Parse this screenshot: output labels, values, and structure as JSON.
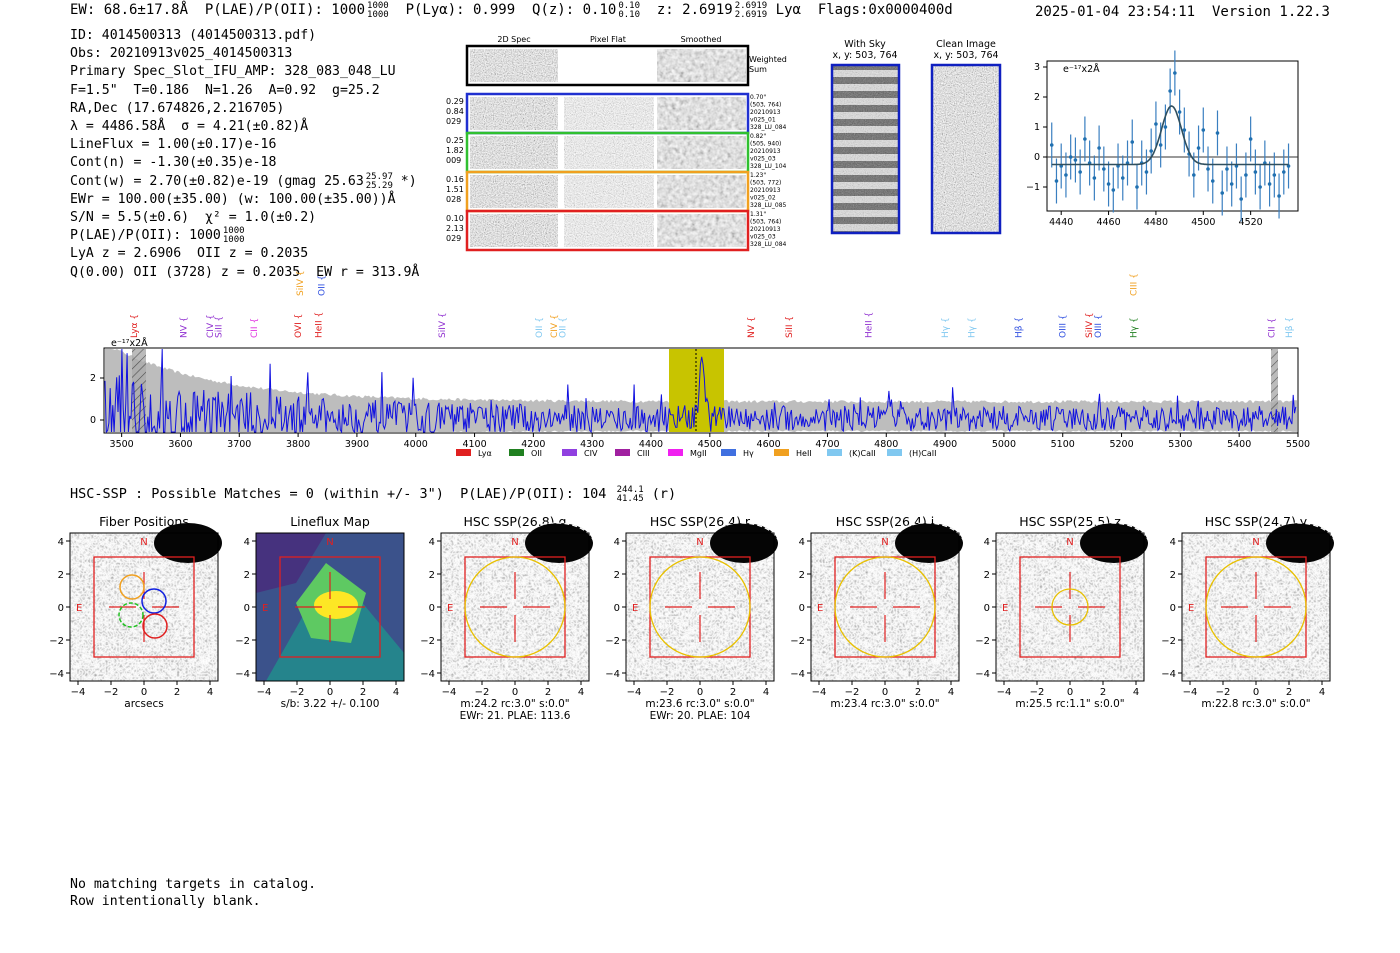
{
  "header": {
    "ew": "EW: 68.6±17.8Å",
    "plae_label": "P(LAE)/P(OII): 1000",
    "plae_hi": "1000",
    "plae_lo": "1000",
    "plya": "P(Lyα): 0.999",
    "qz_label": "Q(z): 0.10",
    "qz_hi": "0.10",
    "qz_lo": "0.10",
    "z_label": "z: 2.6919",
    "z_hi": "2.6919",
    "z_lo": "2.6919",
    "line": "Lyα",
    "flags": "Flags:0x0000400d",
    "datetime": "2025-01-04 23:54:11",
    "version": "Version 1.22.3"
  },
  "info": {
    "id": "ID: 4014500313 (4014500313.pdf)",
    "obs": "Obs: 20210913v025_4014500313",
    "primary": "Primary Spec_Slot_IFU_AMP: 328_083_048_LU",
    "fparams": "F=1.5\"  T=0.186  N=1.26  A=0.92  g=25.2",
    "radec": "RA,Dec (17.674826,2.216705)",
    "lambda": "λ = 4486.58Å  σ = 4.21(±0.82)Å",
    "lineflux": "LineFlux = 1.00(±0.17)e-16",
    "contn": "Cont(n) = -1.30(±0.35)e-18",
    "contw": "Cont(w) = 2.70(±0.82)e-19 (gmag 25.63",
    "gmag_hi": "25.97",
    "gmag_lo": "25.29",
    "contw_end": " *)",
    "ewr": "EWr = 100.00(±35.00) (w: 100.00(±35.00))Å",
    "sn": "S/N = 5.5(±0.6)  χ² = 1.0(±0.2)",
    "plae": "P(LAE)/P(OII): 1000",
    "plae_hi": "1000",
    "plae_lo": "1000",
    "lya_z": "LyA z = 2.6906  OII z = 0.2035",
    "q_oii": "Q(0.00) OII (3728) z = 0.2035  EW r = 313.9Å"
  },
  "cutouts": {
    "col_headers": [
      "2D Spec",
      "Pixel Flat",
      "Smoothed"
    ],
    "weighted_sum": [
      "Weighted",
      "Sum"
    ],
    "rows": [
      {
        "left": [
          "0.29",
          "0.84",
          "029"
        ],
        "right": [
          "0.70\"",
          "(503, 764)",
          "20210913",
          "v025_01",
          "328_LU_084"
        ],
        "color": "#2030d0"
      },
      {
        "left": [
          "0.25",
          "1.82",
          "009"
        ],
        "right": [
          "0.82\"",
          "(505, 940)",
          "20210913",
          "v025_03",
          "328_LU_104"
        ],
        "color": "#30c030"
      },
      {
        "left": [
          "0.16",
          "1.51",
          "028"
        ],
        "right": [
          "1.23\"",
          "(503, 772)",
          "20210913",
          "v025_02",
          "328_LU_085"
        ],
        "color": "#f0a020"
      },
      {
        "left": [
          "0.10",
          "2.13",
          "029"
        ],
        "right": [
          "1.31\"",
          "(503, 764)",
          "20210913",
          "v025_03",
          "328_LU_084"
        ],
        "color": "#e02020"
      }
    ]
  },
  "sky": {
    "with_sky": [
      "With Sky",
      "x, y: 503, 764"
    ],
    "clean": [
      "Clean Image",
      "x, y: 503, 764"
    ]
  },
  "zoom_fit": {
    "unit": "e⁻¹⁷x2Å",
    "xticks": [
      "4440",
      "4460",
      "4480",
      "4500",
      "4520"
    ],
    "yticks": [
      "3",
      "2",
      "1",
      "0",
      "−1"
    ],
    "xlim": [
      4434,
      4540
    ],
    "ylim": [
      -1.8,
      3.2
    ],
    "points_x": [
      4436,
      4438,
      4440,
      4442,
      4444,
      4446,
      4448,
      4450,
      4452,
      4454,
      4456,
      4458,
      4460,
      4462,
      4464,
      4466,
      4468,
      4470,
      4472,
      4474,
      4476,
      4478,
      4480,
      4482,
      4484,
      4486,
      4488,
      4490,
      4492,
      4494,
      4496,
      4498,
      4500,
      4502,
      4504,
      4506,
      4508,
      4510,
      4512,
      4514,
      4516,
      4518,
      4520,
      4522,
      4524,
      4526,
      4528,
      4530,
      4532,
      4534,
      4536
    ],
    "points_y": [
      0.4,
      -0.8,
      -0.3,
      -0.6,
      0.0,
      -0.1,
      -0.5,
      0.6,
      -0.2,
      -0.7,
      0.3,
      -0.4,
      -0.9,
      -1.1,
      -0.3,
      -0.7,
      -0.2,
      0.5,
      -1.0,
      -0.2,
      -0.5,
      0.2,
      1.1,
      0.4,
      1.0,
      2.2,
      2.8,
      1.5,
      0.9,
      0.1,
      -0.6,
      0.3,
      0.9,
      -0.4,
      -0.8,
      0.8,
      -1.2,
      -0.4,
      -0.9,
      -0.3,
      -1.4,
      -0.6,
      0.6,
      -0.5,
      -1.0,
      -0.2,
      -0.9,
      -0.6,
      -1.3,
      -0.5,
      -0.3
    ]
  },
  "spectrum": {
    "unit": "e⁻¹⁷x2Å",
    "xticks": [
      "3500",
      "3600",
      "3700",
      "3800",
      "3900",
      "4000",
      "4100",
      "4200",
      "4300",
      "4400",
      "4500",
      "4600",
      "4700",
      "4800",
      "4900",
      "5000",
      "5100",
      "5200",
      "5300",
      "5400",
      "5500"
    ],
    "yticks": [
      "2",
      "0"
    ],
    "line_labels": [
      {
        "name": "Lyα",
        "wave": 3526,
        "color": "#e02020",
        "row": 2
      },
      {
        "name": "NV",
        "wave": 3610,
        "color": "#9030d0",
        "row": 2
      },
      {
        "name": "CIV",
        "wave": 3655,
        "color": "#9030d0",
        "row": 2
      },
      {
        "name": "SiII",
        "wave": 3670,
        "color": "#9030d0",
        "row": 2
      },
      {
        "name": "CII",
        "wave": 3730,
        "color": "#e030e0",
        "row": 2
      },
      {
        "name": "OVI",
        "wave": 3805,
        "color": "#e02020",
        "row": 2
      },
      {
        "name": "SiIV",
        "wave": 3808,
        "color": "#f0a020",
        "row": 1
      },
      {
        "name": "OII",
        "wave": 3845,
        "color": "#3050e0",
        "row": 1
      },
      {
        "name": "HeII",
        "wave": 3840,
        "color": "#e02020",
        "row": 2
      },
      {
        "name": "SiIV",
        "wave": 4050,
        "color": "#9030d0",
        "row": 2
      },
      {
        "name": "OII",
        "wave": 4215,
        "color": "#80c8f0",
        "row": 2
      },
      {
        "name": "CIV",
        "wave": 4240,
        "color": "#f0a020",
        "row": 2
      },
      {
        "name": "OII",
        "wave": 4255,
        "color": "#80c8f0",
        "row": 2
      },
      {
        "name": "NV",
        "wave": 4575,
        "color": "#e02020",
        "row": 2
      },
      {
        "name": "SiII",
        "wave": 4640,
        "color": "#e02020",
        "row": 2
      },
      {
        "name": "HeII",
        "wave": 4775,
        "color": "#9030d0",
        "row": 2
      },
      {
        "name": "Hγ",
        "wave": 4905,
        "color": "#80c8f0",
        "row": 2
      },
      {
        "name": "Hγ",
        "wave": 4950,
        "color": "#80c8f0",
        "row": 2
      },
      {
        "name": "Hβ",
        "wave": 5030,
        "color": "#3050e0",
        "row": 2
      },
      {
        "name": "OIII",
        "wave": 5105,
        "color": "#3050e0",
        "row": 2
      },
      {
        "name": "SiIV",
        "wave": 5150,
        "color": "#e02020",
        "row": 2
      },
      {
        "name": "OIII",
        "wave": 5165,
        "color": "#3050e0",
        "row": 2
      },
      {
        "name": "CIII",
        "wave": 5225,
        "color": "#f0a020",
        "row": 1
      },
      {
        "name": "Hγ",
        "wave": 5225,
        "color": "#208020",
        "row": 2
      },
      {
        "name": "CII",
        "wave": 5460,
        "color": "#9030d0",
        "row": 2
      },
      {
        "name": "Hβ",
        "wave": 5490,
        "color": "#80c8f0",
        "row": 2
      }
    ],
    "legend": [
      {
        "name": "Lyα",
        "color": "#e02020"
      },
      {
        "name": "OII",
        "color": "#208020"
      },
      {
        "name": "CIV",
        "color": "#9040e0"
      },
      {
        "name": "CIII",
        "color": "#a020a0"
      },
      {
        "name": "MgII",
        "color": "#f020f0"
      },
      {
        "name": "Hγ",
        "color": "#4070e0"
      },
      {
        "name": "HeII",
        "color": "#f0a020"
      },
      {
        "name": "(K)CaII",
        "color": "#80c8f0"
      },
      {
        "name": "(H)CaII",
        "color": "#80c8f0"
      }
    ]
  },
  "hsc": {
    "line": "HSC-SSP : Possible Matches = 0 (within +/- 3\")  P(LAE)/P(OII): 104",
    "hi": "244.1",
    "lo": "41.45",
    "band": " (r)",
    "panels": [
      {
        "title": "Fiber Positions",
        "c1": "arcsecs",
        "c2": ""
      },
      {
        "title": "Lineflux Map",
        "c1": "s/b: 3.22 +/- 0.100",
        "c2": ""
      },
      {
        "title": "HSC SSP(26.8) g",
        "c1": "m:24.2 rc:3.0\"  s:0.0\"",
        "c2": "EWr: 21. PLAE: 113.6"
      },
      {
        "title": "HSC SSP(26.4) r",
        "c1": "m:23.6 rc:3.0\"  s:0.0\"",
        "c2": "EWr: 20. PLAE: 104"
      },
      {
        "title": "HSC SSP(26.4) i",
        "c1": "m:23.4 rc:3.0\"  s:0.0\"",
        "c2": ""
      },
      {
        "title": "HSC SSP(25.5) z",
        "c1": "m:25.5 rc:1.1\"  s:0.0\"",
        "c2": ""
      },
      {
        "title": "HSC SSP(24.7) y",
        "c1": "m:22.8 rc:3.0\"  s:0.0\"",
        "c2": ""
      }
    ],
    "yticks": [
      "4",
      "2",
      "0",
      "−2",
      "−4"
    ],
    "xticks": [
      "−4",
      "−2",
      "0",
      "2",
      "4"
    ],
    "north": "N",
    "east": "E"
  },
  "catalog": {
    "line1": "No matching targets in catalog.",
    "line2": "Row intentionally blank."
  }
}
